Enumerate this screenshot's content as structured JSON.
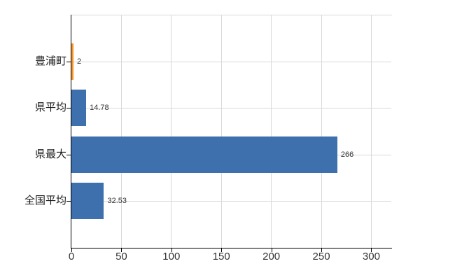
{
  "chart_data": {
    "type": "bar",
    "orientation": "horizontal",
    "categories": [
      "豊浦町",
      "県平均",
      "県最大",
      "全国平均"
    ],
    "values": [
      2,
      14.78,
      266,
      32.53
    ],
    "value_labels": [
      "2",
      "14.78",
      "266",
      "32.53"
    ],
    "bar_colors": [
      "#F79428",
      "#3D70AC",
      "#3D70AC",
      "#3D70AC"
    ],
    "xlim": [
      0,
      320
    ],
    "xticks": [
      0,
      50,
      100,
      150,
      200,
      250,
      300
    ],
    "xtick_labels": [
      "0",
      "50",
      "100",
      "150",
      "200",
      "250",
      "300"
    ],
    "grid": true,
    "legend": false,
    "colors": {
      "grid": "#D9D9D9",
      "axis": "#000000",
      "text": "#333333",
      "background": "#FFFFFF"
    }
  }
}
